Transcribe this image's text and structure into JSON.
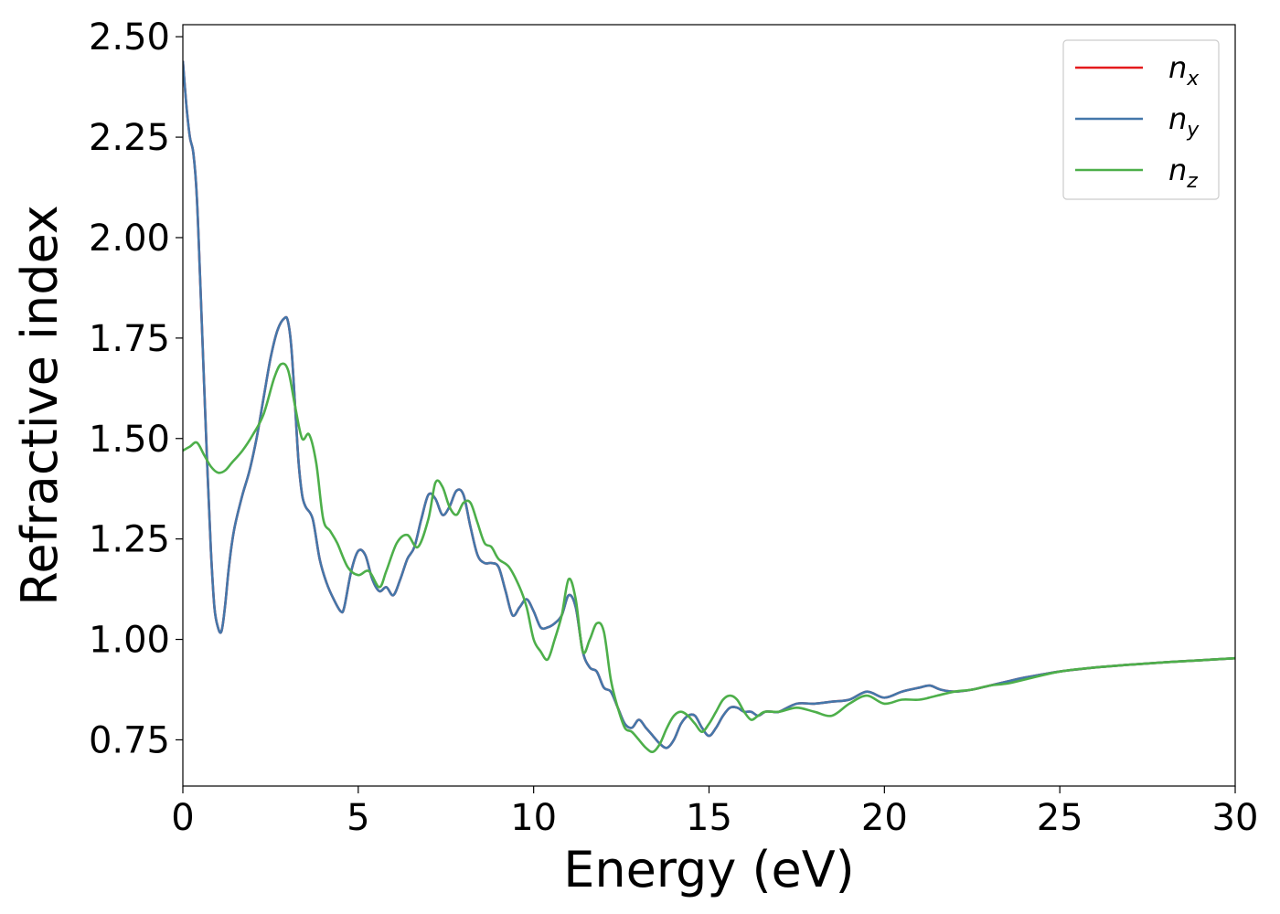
{
  "chart_data": {
    "type": "line",
    "title": "",
    "xlabel": "Energy (eV)",
    "ylabel": "Refractive index",
    "xlim": [
      0,
      30
    ],
    "ylim": [
      0.635,
      2.53
    ],
    "xticks": [
      0,
      5,
      10,
      15,
      20,
      25,
      30
    ],
    "xtick_labels": [
      "0",
      "5",
      "10",
      "15",
      "20",
      "25",
      "30"
    ],
    "yticks": [
      0.75,
      1.0,
      1.25,
      1.5,
      1.75,
      2.0,
      2.25,
      2.5
    ],
    "ytick_labels": [
      "0.75",
      "1.00",
      "1.25",
      "1.50",
      "1.75",
      "2.00",
      "2.25",
      "2.50"
    ],
    "grid": false,
    "legend_position": "top-right",
    "series": [
      {
        "name": "n_x",
        "label_main": "n",
        "label_sub": "x",
        "color": "#e41a1c",
        "x": [
          0,
          0.1,
          0.2,
          0.3,
          0.4,
          0.5,
          0.6,
          0.7,
          0.8,
          0.9,
          1.0,
          1.1,
          1.2,
          1.3,
          1.4,
          1.5,
          1.7,
          1.9,
          2.1,
          2.3,
          2.5,
          2.7,
          2.9,
          3.0,
          3.1,
          3.2,
          3.3,
          3.4,
          3.5,
          3.7,
          3.9,
          4.1,
          4.3,
          4.5,
          4.6,
          4.8,
          5.0,
          5.2,
          5.4,
          5.6,
          5.8,
          6.0,
          6.2,
          6.4,
          6.6,
          6.8,
          7.0,
          7.2,
          7.4,
          7.6,
          7.8,
          8.0,
          8.2,
          8.4,
          8.6,
          8.8,
          9.0,
          9.2,
          9.4,
          9.6,
          9.8,
          10.0,
          10.2,
          10.4,
          10.6,
          10.8,
          11.0,
          11.2,
          11.4,
          11.6,
          11.8,
          12.0,
          12.2,
          12.4,
          12.6,
          12.8,
          13.0,
          13.2,
          13.4,
          13.6,
          13.8,
          14.0,
          14.2,
          14.4,
          14.6,
          14.8,
          15.0,
          15.2,
          15.4,
          15.6,
          15.8,
          16.0,
          16.2,
          16.4,
          16.6,
          16.8,
          17.0,
          17.5,
          18.0,
          18.5,
          19.0,
          19.5,
          20.0,
          20.5,
          21.0,
          21.3,
          21.6,
          22.0,
          22.5,
          23.0,
          23.5,
          24.0,
          25.0,
          26.0,
          27.0,
          28.0,
          29.0,
          30.0
        ],
        "y": [
          2.44,
          2.33,
          2.25,
          2.21,
          2.1,
          1.88,
          1.65,
          1.42,
          1.22,
          1.08,
          1.03,
          1.02,
          1.08,
          1.17,
          1.24,
          1.29,
          1.36,
          1.42,
          1.5,
          1.6,
          1.7,
          1.77,
          1.8,
          1.79,
          1.72,
          1.58,
          1.44,
          1.36,
          1.33,
          1.3,
          1.2,
          1.14,
          1.1,
          1.07,
          1.08,
          1.17,
          1.22,
          1.21,
          1.15,
          1.12,
          1.13,
          1.11,
          1.15,
          1.2,
          1.23,
          1.3,
          1.36,
          1.35,
          1.31,
          1.33,
          1.37,
          1.36,
          1.28,
          1.21,
          1.19,
          1.19,
          1.18,
          1.12,
          1.06,
          1.08,
          1.1,
          1.07,
          1.03,
          1.03,
          1.04,
          1.06,
          1.11,
          1.08,
          0.97,
          0.93,
          0.92,
          0.88,
          0.87,
          0.83,
          0.79,
          0.78,
          0.8,
          0.78,
          0.76,
          0.74,
          0.73,
          0.75,
          0.79,
          0.81,
          0.81,
          0.78,
          0.76,
          0.78,
          0.81,
          0.83,
          0.83,
          0.82,
          0.82,
          0.81,
          0.82,
          0.82,
          0.82,
          0.84,
          0.84,
          0.845,
          0.85,
          0.87,
          0.855,
          0.87,
          0.88,
          0.885,
          0.875,
          0.87,
          0.875,
          0.885,
          0.895,
          0.905,
          0.92,
          0.93,
          0.937,
          0.943,
          0.948,
          0.953
        ]
      },
      {
        "name": "n_y",
        "label_main": "n",
        "label_sub": "y",
        "color": "#4477aa",
        "x": [
          0,
          0.1,
          0.2,
          0.3,
          0.4,
          0.5,
          0.6,
          0.7,
          0.8,
          0.9,
          1.0,
          1.1,
          1.2,
          1.3,
          1.4,
          1.5,
          1.7,
          1.9,
          2.1,
          2.3,
          2.5,
          2.7,
          2.9,
          3.0,
          3.1,
          3.2,
          3.3,
          3.4,
          3.5,
          3.7,
          3.9,
          4.1,
          4.3,
          4.5,
          4.6,
          4.8,
          5.0,
          5.2,
          5.4,
          5.6,
          5.8,
          6.0,
          6.2,
          6.4,
          6.6,
          6.8,
          7.0,
          7.2,
          7.4,
          7.6,
          7.8,
          8.0,
          8.2,
          8.4,
          8.6,
          8.8,
          9.0,
          9.2,
          9.4,
          9.6,
          9.8,
          10.0,
          10.2,
          10.4,
          10.6,
          10.8,
          11.0,
          11.2,
          11.4,
          11.6,
          11.8,
          12.0,
          12.2,
          12.4,
          12.6,
          12.8,
          13.0,
          13.2,
          13.4,
          13.6,
          13.8,
          14.0,
          14.2,
          14.4,
          14.6,
          14.8,
          15.0,
          15.2,
          15.4,
          15.6,
          15.8,
          16.0,
          16.2,
          16.4,
          16.6,
          16.8,
          17.0,
          17.5,
          18.0,
          18.5,
          19.0,
          19.5,
          20.0,
          20.5,
          21.0,
          21.3,
          21.6,
          22.0,
          22.5,
          23.0,
          23.5,
          24.0,
          25.0,
          26.0,
          27.0,
          28.0,
          29.0,
          30.0
        ],
        "y": [
          2.44,
          2.33,
          2.25,
          2.21,
          2.1,
          1.88,
          1.65,
          1.42,
          1.22,
          1.08,
          1.03,
          1.02,
          1.08,
          1.17,
          1.24,
          1.29,
          1.36,
          1.42,
          1.5,
          1.6,
          1.7,
          1.77,
          1.8,
          1.79,
          1.72,
          1.58,
          1.44,
          1.36,
          1.33,
          1.3,
          1.2,
          1.14,
          1.1,
          1.07,
          1.08,
          1.17,
          1.22,
          1.21,
          1.15,
          1.12,
          1.13,
          1.11,
          1.15,
          1.2,
          1.23,
          1.3,
          1.36,
          1.35,
          1.31,
          1.33,
          1.37,
          1.36,
          1.28,
          1.21,
          1.19,
          1.19,
          1.18,
          1.12,
          1.06,
          1.08,
          1.1,
          1.07,
          1.03,
          1.03,
          1.04,
          1.06,
          1.11,
          1.08,
          0.97,
          0.93,
          0.92,
          0.88,
          0.87,
          0.83,
          0.79,
          0.78,
          0.8,
          0.78,
          0.76,
          0.74,
          0.73,
          0.75,
          0.79,
          0.81,
          0.81,
          0.78,
          0.76,
          0.78,
          0.81,
          0.83,
          0.83,
          0.82,
          0.82,
          0.81,
          0.82,
          0.82,
          0.82,
          0.84,
          0.84,
          0.845,
          0.85,
          0.87,
          0.855,
          0.87,
          0.88,
          0.885,
          0.875,
          0.87,
          0.875,
          0.885,
          0.895,
          0.905,
          0.92,
          0.93,
          0.937,
          0.943,
          0.948,
          0.953
        ]
      },
      {
        "name": "n_z",
        "label_main": "n",
        "label_sub": "z",
        "color": "#4daf4a",
        "x": [
          0,
          0.2,
          0.4,
          0.6,
          0.8,
          1.0,
          1.2,
          1.4,
          1.7,
          2.0,
          2.3,
          2.6,
          2.8,
          3.0,
          3.2,
          3.4,
          3.6,
          3.8,
          4.0,
          4.2,
          4.4,
          4.7,
          5.0,
          5.3,
          5.6,
          5.8,
          6.1,
          6.4,
          6.7,
          7.0,
          7.2,
          7.4,
          7.6,
          7.8,
          8.0,
          8.2,
          8.4,
          8.6,
          8.8,
          9.0,
          9.3,
          9.6,
          9.8,
          10.0,
          10.2,
          10.4,
          10.6,
          10.8,
          11.0,
          11.2,
          11.4,
          11.6,
          11.8,
          12.0,
          12.2,
          12.4,
          12.6,
          12.8,
          13.0,
          13.2,
          13.4,
          13.6,
          13.8,
          14.0,
          14.2,
          14.4,
          14.6,
          14.8,
          15.0,
          15.2,
          15.4,
          15.6,
          15.8,
          16.0,
          16.2,
          16.4,
          16.6,
          17.0,
          17.5,
          18.0,
          18.5,
          19.0,
          19.5,
          20.0,
          20.5,
          21.0,
          21.5,
          22.0,
          22.5,
          23.0,
          23.5,
          24.0,
          25.0,
          26.0,
          27.0,
          28.0,
          29.0,
          30.0
        ],
        "y": [
          1.47,
          1.48,
          1.49,
          1.46,
          1.43,
          1.415,
          1.42,
          1.44,
          1.47,
          1.51,
          1.56,
          1.65,
          1.685,
          1.67,
          1.58,
          1.5,
          1.51,
          1.44,
          1.3,
          1.27,
          1.24,
          1.18,
          1.16,
          1.17,
          1.13,
          1.17,
          1.24,
          1.26,
          1.23,
          1.3,
          1.39,
          1.38,
          1.33,
          1.31,
          1.34,
          1.34,
          1.29,
          1.24,
          1.23,
          1.2,
          1.18,
          1.13,
          1.08,
          1.0,
          0.97,
          0.95,
          1.0,
          1.06,
          1.15,
          1.1,
          0.97,
          1.0,
          1.04,
          1.02,
          0.9,
          0.83,
          0.78,
          0.77,
          0.75,
          0.73,
          0.72,
          0.74,
          0.78,
          0.81,
          0.82,
          0.81,
          0.79,
          0.77,
          0.79,
          0.82,
          0.85,
          0.86,
          0.85,
          0.82,
          0.8,
          0.81,
          0.82,
          0.82,
          0.83,
          0.82,
          0.81,
          0.84,
          0.86,
          0.84,
          0.85,
          0.85,
          0.86,
          0.87,
          0.875,
          0.885,
          0.89,
          0.9,
          0.92,
          0.93,
          0.937,
          0.943,
          0.948,
          0.953
        ]
      }
    ]
  }
}
